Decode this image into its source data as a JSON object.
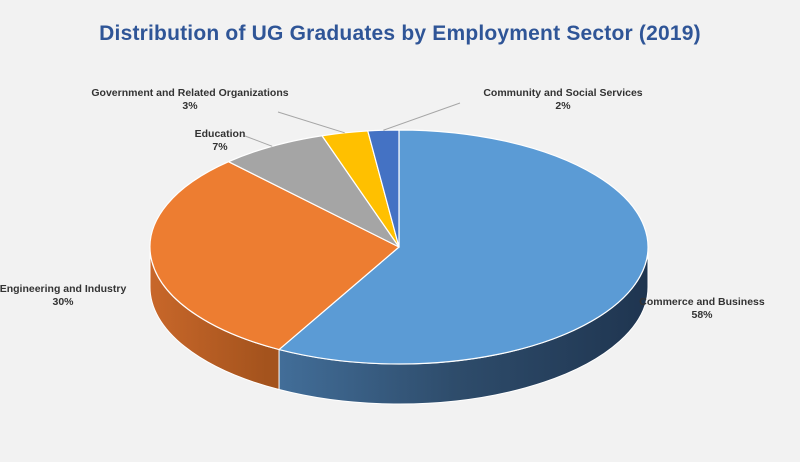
{
  "chart_data": {
    "type": "pie",
    "title": "Distribution of UG Graduates by Employment Sector (2019)",
    "categories": [
      "Commerce and Business",
      "Engineering and Industry",
      "Education",
      "Government and Related Organizations",
      "Community and Social Services"
    ],
    "values": [
      58,
      30,
      7,
      3,
      2
    ],
    "value_labels": [
      "58%",
      "30%",
      "7%",
      "3%",
      "2%"
    ],
    "colors": [
      "#5b9bd5",
      "#ed7d31",
      "#a5a5a5",
      "#ffc000",
      "#4472c4"
    ],
    "legend": "none"
  }
}
